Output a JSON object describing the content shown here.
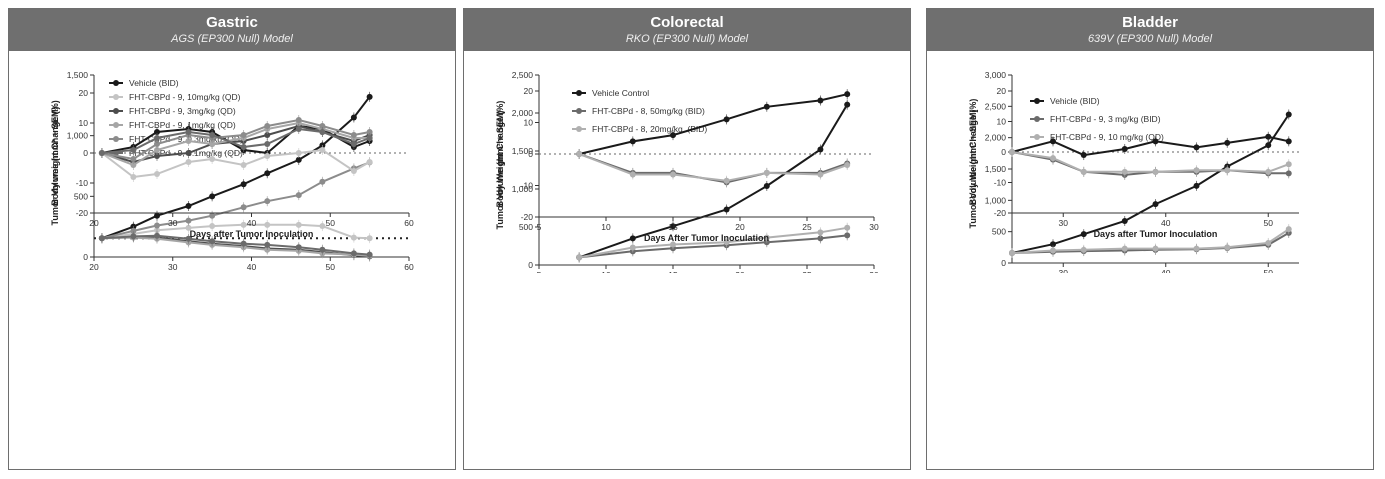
{
  "colors": {
    "vehicle": "#1a1a1a",
    "dark": "#4d4d4d",
    "mid": "#7a7a7a",
    "light": "#a6a6a6",
    "lighter": "#c4c4c4",
    "header_bg": "#6f6f6f"
  },
  "chart_data": [
    {
      "type": "line",
      "panel": "Gastric",
      "title": "Gastric",
      "subtitle": "AGS (EP300 Null) Model",
      "xlabel": "Days After Tumor Inoculation",
      "ylabel": "Tumor Volume (mm³ + SEM)",
      "xlim": [
        20,
        60
      ],
      "ylim": [
        0,
        1500
      ],
      "xticks": [
        20,
        30,
        40,
        50,
        60
      ],
      "yticks": [
        0,
        500,
        1000,
        1500
      ],
      "ytick_labels": [
        "0",
        "500",
        "1,000",
        "1,500"
      ],
      "ref_line": 155,
      "legend_position": "top-left",
      "series": [
        {
          "name": "Vehicle (BID)",
          "color": "#1a1a1a",
          "x": [
            21,
            25,
            28,
            32,
            35,
            39,
            42,
            46,
            49,
            53,
            55
          ],
          "y": [
            155,
            250,
            340,
            420,
            500,
            600,
            690,
            800,
            920,
            1150,
            1320
          ]
        },
        {
          "name": "FHT-CBPd - 9, 10mg/kg (QD)",
          "color": "#c4c4c4",
          "x": [
            21,
            25,
            28,
            32,
            35,
            39,
            42,
            46,
            49,
            53,
            55
          ],
          "y": [
            155,
            190,
            220,
            240,
            255,
            265,
            265,
            265,
            255,
            160,
            155
          ]
        },
        {
          "name": "FHT-CBPd - 9, 3mg/kg (QD)",
          "color": "#4d4d4d",
          "x": [
            21,
            25,
            28,
            32,
            35,
            39,
            42,
            46,
            49,
            53,
            55
          ],
          "y": [
            155,
            165,
            160,
            130,
            110,
            90,
            70,
            60,
            40,
            15,
            5
          ]
        },
        {
          "name": "FHT-CBPd - 9, 1mg/kg (QD)",
          "color": "#a6a6a6",
          "x": [
            21,
            25,
            28,
            32,
            35,
            39,
            42,
            46,
            49,
            53,
            55
          ],
          "y": [
            155,
            160,
            150,
            120,
            100,
            80,
            60,
            50,
            30,
            20,
            10
          ]
        },
        {
          "name": "FHT-CBPd - 9, 0.3mg/kg (QD)",
          "color": "#8c8c8c",
          "x": [
            21,
            25,
            28,
            32,
            35,
            39,
            42,
            46,
            49,
            53,
            55
          ],
          "y": [
            155,
            215,
            260,
            300,
            340,
            410,
            460,
            510,
            620,
            730,
            780
          ]
        },
        {
          "name": "FHT-CBPd - 9, 0.1mg/kg (QD)",
          "color": "#6b6b6b",
          "x": [
            21,
            25,
            28,
            32,
            35,
            39,
            42,
            46,
            49,
            53,
            55
          ],
          "y": [
            155,
            170,
            175,
            150,
            130,
            110,
            100,
            80,
            60,
            30,
            20
          ]
        }
      ]
    },
    {
      "type": "line",
      "panel": "Gastric",
      "xlabel": "Days after Tumor Inoculation",
      "ylabel": "Body weight Change (%)",
      "xlim": [
        20,
        60
      ],
      "ylim": [
        -20,
        20
      ],
      "xticks": [
        20,
        30,
        40,
        50,
        60
      ],
      "yticks": [
        -20,
        -10,
        0,
        10,
        20
      ],
      "ref_line": 0,
      "series": [
        {
          "color": "#1a1a1a",
          "x": [
            21,
            25,
            28,
            32,
            35,
            39,
            42,
            46,
            49,
            53,
            55
          ],
          "y": [
            0,
            2,
            7,
            8,
            7,
            1,
            0,
            9,
            8,
            2,
            4
          ]
        },
        {
          "color": "#c4c4c4",
          "x": [
            21,
            25,
            28,
            32,
            35,
            39,
            42,
            46,
            49,
            53,
            55
          ],
          "y": [
            0,
            -8,
            -7,
            -3,
            -2,
            -4,
            -1,
            0,
            1,
            -6,
            -3
          ]
        },
        {
          "color": "#4d4d4d",
          "x": [
            21,
            25,
            28,
            32,
            35,
            39,
            42,
            46,
            49,
            53,
            55
          ],
          "y": [
            0,
            -3,
            -1,
            0,
            3,
            4,
            6,
            9,
            7,
            4,
            6
          ]
        },
        {
          "color": "#a6a6a6",
          "x": [
            21,
            25,
            28,
            32,
            35,
            39,
            42,
            46,
            49,
            53,
            55
          ],
          "y": [
            0,
            -4,
            1,
            4,
            3,
            5,
            8,
            10,
            8,
            5,
            5
          ]
        },
        {
          "color": "#8c8c8c",
          "x": [
            21,
            25,
            28,
            32,
            35,
            39,
            42,
            46,
            49,
            53,
            55
          ],
          "y": [
            0,
            -2,
            3,
            6,
            5,
            6,
            9,
            11,
            9,
            6,
            7
          ]
        },
        {
          "color": "#6b6b6b",
          "x": [
            21,
            25,
            28,
            32,
            35,
            39,
            42,
            46,
            49,
            53,
            55
          ],
          "y": [
            0,
            1,
            5,
            7,
            6,
            2,
            3,
            8,
            7,
            3,
            5
          ]
        }
      ]
    },
    {
      "type": "line",
      "panel": "Colorectal",
      "title": "Colorectal",
      "subtitle": "RKO (EP300 Null) Model",
      "xlabel": "Days After Tumor Inoculation",
      "ylabel": "Tumor Volume (mm³ + SEM)",
      "xlim": [
        5,
        30
      ],
      "ylim": [
        0,
        2500
      ],
      "xticks": [
        5,
        10,
        15,
        20,
        25,
        30
      ],
      "yticks": [
        0,
        500,
        1000,
        1500,
        2000,
        2500
      ],
      "ytick_labels": [
        "0",
        "500",
        "1,000",
        "1,500",
        "2,000",
        "2,500"
      ],
      "legend_position": "top-left",
      "series": [
        {
          "name": "Vehicle Control",
          "color": "#1a1a1a",
          "x": [
            8,
            12,
            15,
            19,
            22,
            26,
            28
          ],
          "y": [
            100,
            350,
            510,
            730,
            1040,
            1520,
            2110
          ]
        },
        {
          "name": "FHT-CBPd - 8, 50mg/kg (BID)",
          "color": "#6b6b6b",
          "x": [
            8,
            12,
            15,
            19,
            22,
            26,
            28
          ],
          "y": [
            100,
            180,
            220,
            260,
            300,
            350,
            390
          ]
        },
        {
          "name": "FHT-CBPd - 8, 20mg/kg, (BID)",
          "color": "#b0b0b0",
          "x": [
            8,
            12,
            15,
            19,
            22,
            26,
            28
          ],
          "y": [
            100,
            230,
            270,
            300,
            360,
            430,
            490
          ]
        }
      ]
    },
    {
      "type": "line",
      "panel": "Colorectal",
      "xlabel": "Days After Tumor Inoculation",
      "ylabel": "Body Weight Change (%)",
      "xlim": [
        5,
        30
      ],
      "ylim": [
        -20,
        20
      ],
      "xticks": [
        5,
        10,
        15,
        20,
        25,
        30
      ],
      "yticks": [
        -20,
        -10,
        0,
        10,
        20
      ],
      "ref_line": 0,
      "series": [
        {
          "color": "#1a1a1a",
          "x": [
            8,
            12,
            15,
            19,
            22,
            26,
            28
          ],
          "y": [
            0,
            4,
            6,
            11,
            15,
            17,
            19
          ]
        },
        {
          "color": "#6b6b6b",
          "x": [
            8,
            12,
            15,
            19,
            22,
            26,
            28
          ],
          "y": [
            0,
            -6,
            -6,
            -9,
            -6,
            -6,
            -3
          ]
        },
        {
          "color": "#b0b0b0",
          "x": [
            8,
            12,
            15,
            19,
            22,
            26,
            28
          ],
          "y": [
            0,
            -6.5,
            -6.5,
            -8.5,
            -6,
            -6.5,
            -3.5
          ]
        }
      ]
    },
    {
      "type": "line",
      "panel": "Bladder",
      "title": "Bladder",
      "subtitle": "639V (EP300 Null) Model",
      "xlabel": "Days after Tumor Inoculation",
      "ylabel": "Tumor Volume (mm³ + SEM)",
      "xlim": [
        25,
        53
      ],
      "ylim": [
        0,
        3000
      ],
      "xticks": [
        30,
        40,
        50
      ],
      "yticks": [
        0,
        500,
        1000,
        1500,
        2000,
        2500,
        3000
      ],
      "ytick_labels": [
        "0",
        "500",
        "1,000",
        "1,500",
        "2,000",
        "2,500",
        "3,000"
      ],
      "legend_position": "top-left",
      "series": [
        {
          "name": "Vehicle (BID)",
          "color": "#1a1a1a",
          "x": [
            25,
            29,
            32,
            36,
            39,
            43,
            46,
            50,
            52
          ],
          "y": [
            160,
            300,
            460,
            670,
            940,
            1230,
            1540,
            1880,
            2370
          ]
        },
        {
          "name": "FHT-CBPd - 9, 3 mg/kg (BID)",
          "color": "#6b6b6b",
          "x": [
            25,
            29,
            32,
            36,
            39,
            43,
            46,
            50,
            52
          ],
          "y": [
            160,
            180,
            190,
            200,
            210,
            220,
            240,
            290,
            480
          ]
        },
        {
          "name": "FHT-CBPd - 9, 10 mg/kg (QD)",
          "color": "#b0b0b0",
          "x": [
            25,
            29,
            32,
            36,
            39,
            43,
            46,
            50,
            52
          ],
          "y": [
            160,
            200,
            210,
            230,
            230,
            230,
            250,
            320,
            540
          ]
        }
      ]
    },
    {
      "type": "line",
      "panel": "Bladder",
      "xlabel": "Days after Tumor Inoculation",
      "ylabel": "Body Weight Change (%)",
      "xlim": [
        25,
        53
      ],
      "ylim": [
        -20,
        20
      ],
      "xticks": [
        30,
        40,
        50
      ],
      "yticks": [
        -20,
        -10,
        0,
        10,
        20
      ],
      "ref_line": 0,
      "series": [
        {
          "color": "#1a1a1a",
          "x": [
            25,
            29,
            32,
            36,
            39,
            43,
            46,
            50,
            52
          ],
          "y": [
            0,
            3.5,
            -1,
            1,
            3.5,
            1.5,
            3,
            5,
            3.5
          ]
        },
        {
          "color": "#6b6b6b",
          "x": [
            25,
            29,
            32,
            36,
            39,
            43,
            46,
            50,
            52
          ],
          "y": [
            0,
            -2.5,
            -6.5,
            -7.5,
            -6.5,
            -6.5,
            -6,
            -7,
            -7
          ]
        },
        {
          "color": "#b0b0b0",
          "x": [
            25,
            29,
            32,
            36,
            39,
            43,
            46,
            50,
            52
          ],
          "y": [
            0,
            -2,
            -6.5,
            -6.5,
            -6.5,
            -6,
            -6,
            -6.5,
            -4
          ]
        }
      ]
    }
  ]
}
